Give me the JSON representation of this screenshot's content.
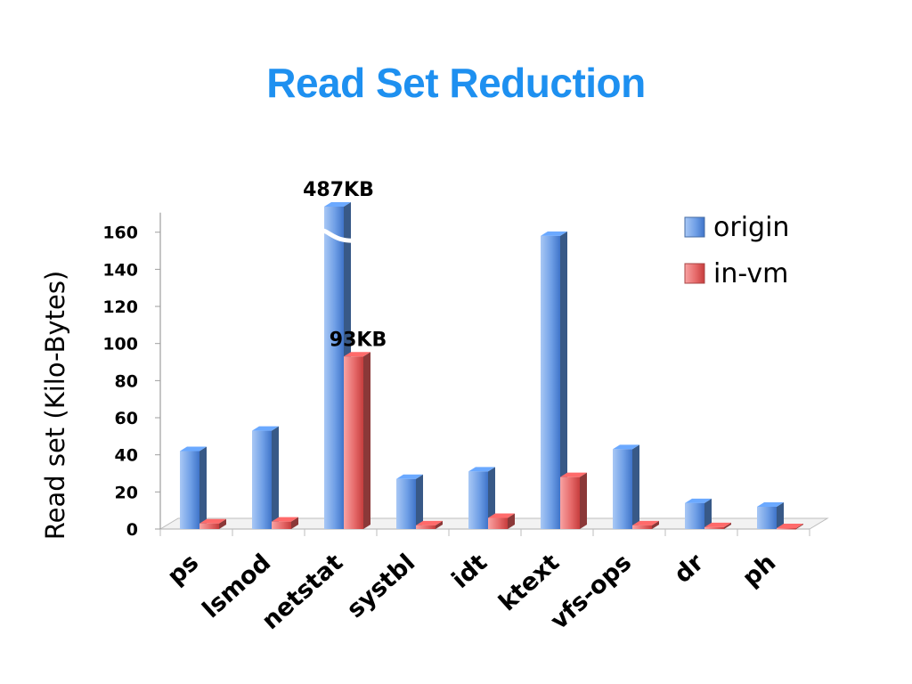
{
  "chart_data": {
    "type": "bar",
    "title": "Read Set Reduction",
    "ylabel": "Read set (Kilo-Bytes)",
    "xlabel": "",
    "ylim": [
      0,
      160
    ],
    "yticks": [
      "0",
      "20",
      "40",
      "60",
      "80",
      "100",
      "120",
      "140",
      "160"
    ],
    "categories": [
      "ps",
      "lsmod",
      "netstat",
      "systbl",
      "idt",
      "ktext",
      "vfs-ops",
      "dr",
      "ph"
    ],
    "series": [
      {
        "name": "origin",
        "values": [
          42,
          53,
          487,
          27,
          31,
          158,
          43,
          14,
          12
        ],
        "color": "#5b8fd9"
      },
      {
        "name": "in-vm",
        "values": [
          3,
          4,
          93,
          2,
          6,
          28,
          2,
          1,
          0.5
        ],
        "color": "#e05a5a"
      }
    ],
    "axis_break": {
      "category": "netstat",
      "series": "origin"
    },
    "annotations": [
      {
        "text": "487KB",
        "category": "netstat",
        "series": "origin"
      },
      {
        "text": "93KB",
        "category": "netstat",
        "series": "in-vm"
      }
    ],
    "legend_position": "top-right",
    "grid": false
  }
}
